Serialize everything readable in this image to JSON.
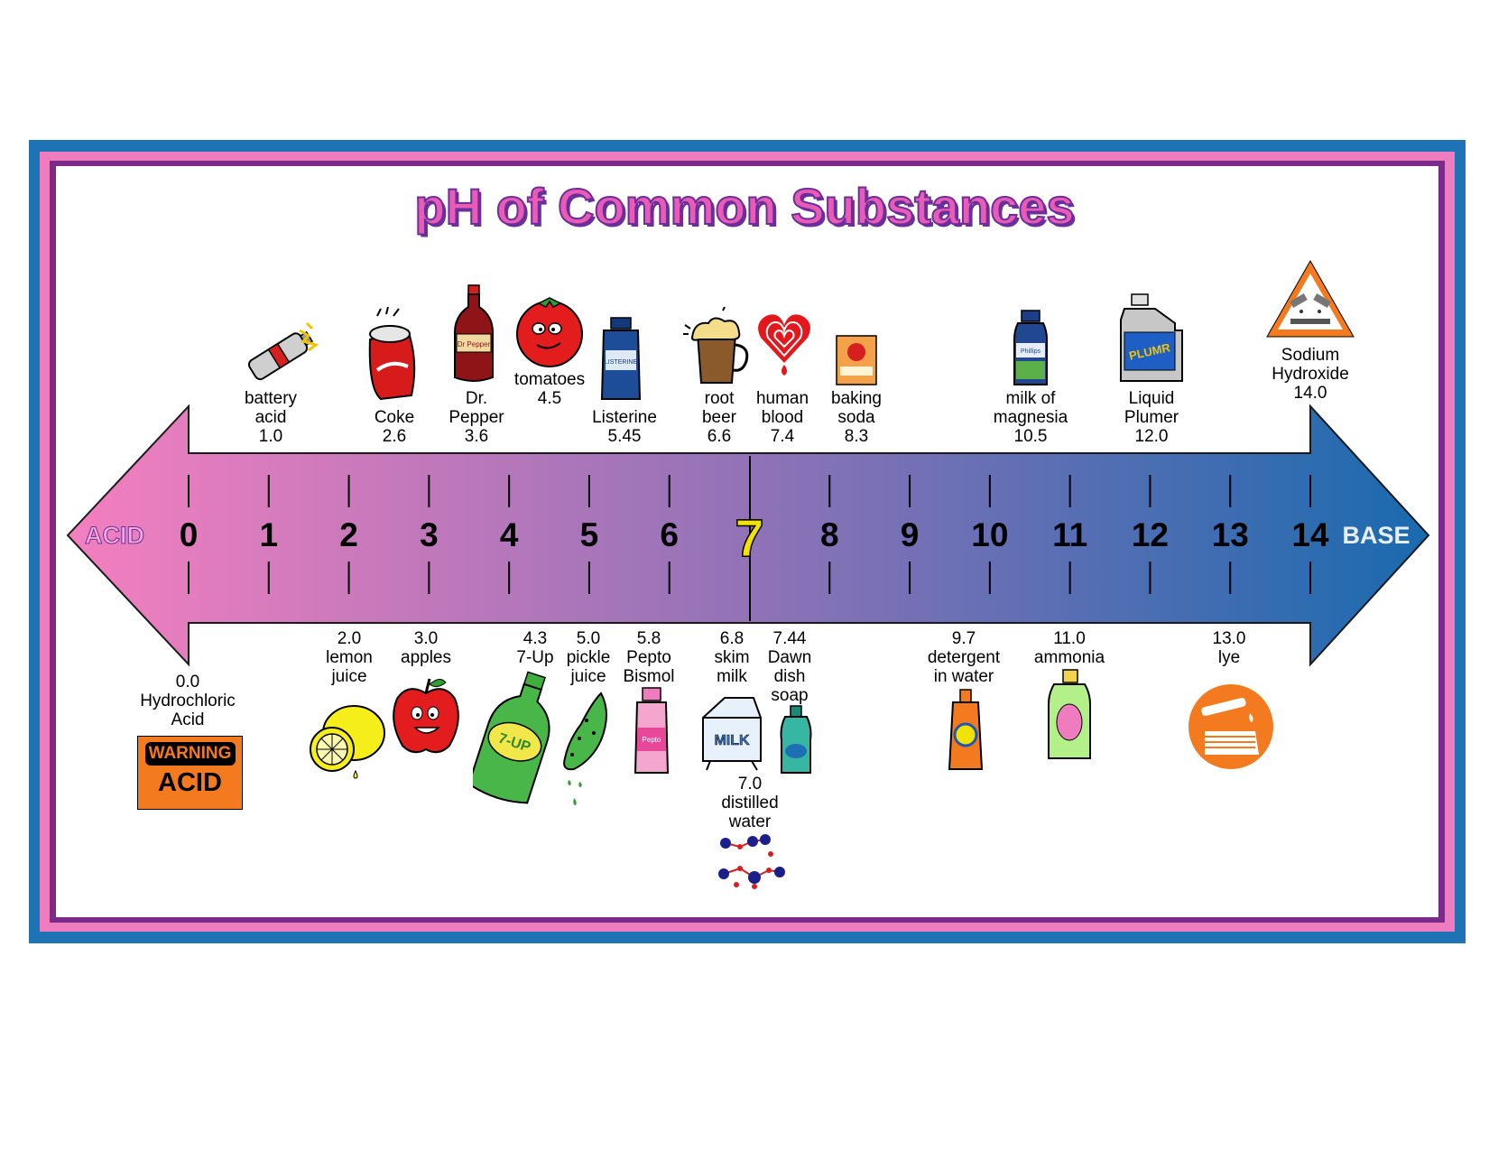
{
  "title": "pH of Common Substances",
  "scale": {
    "acid_label": "ACID",
    "base_label": "BASE",
    "numbers": [
      "0",
      "1",
      "2",
      "3",
      "4",
      "5",
      "6",
      "7",
      "8",
      "9",
      "10",
      "11",
      "12",
      "13",
      "14"
    ],
    "colors": {
      "acid": "#f47fbf",
      "neutral": "#9673b8",
      "base": "#1a6aaf",
      "neutral_number": "#f2e200"
    }
  },
  "top_items": [
    {
      "id": "battery",
      "name_lines": [
        "battery",
        "acid"
      ],
      "value": "1.0",
      "ph": 1.0,
      "icon": "battery-icon"
    },
    {
      "id": "coke",
      "name_lines": [
        "Coke"
      ],
      "value": "2.6",
      "ph": 2.6,
      "icon": "soda-can-icon"
    },
    {
      "id": "drpepper",
      "name_lines": [
        "Dr.",
        "Pepper"
      ],
      "value": "3.6",
      "ph": 3.6,
      "icon": "soda-bottle-icon"
    },
    {
      "id": "tomatoes",
      "name_lines": [
        "tomatoes"
      ],
      "value": "4.5",
      "ph": 4.5,
      "icon": "tomato-icon"
    },
    {
      "id": "listerine",
      "name_lines": [
        "Listerine"
      ],
      "value": "5.45",
      "ph": 5.45,
      "icon": "mouthwash-bottle-icon"
    },
    {
      "id": "rootbeer",
      "name_lines": [
        "root",
        "beer"
      ],
      "value": "6.6",
      "ph": 6.6,
      "icon": "mug-icon"
    },
    {
      "id": "blood",
      "name_lines": [
        "human",
        "blood"
      ],
      "value": "7.4",
      "ph": 7.4,
      "icon": "heart-icon"
    },
    {
      "id": "bakingsoda",
      "name_lines": [
        "baking",
        "soda"
      ],
      "value": "8.3",
      "ph": 8.3,
      "icon": "box-icon"
    },
    {
      "id": "magnesia",
      "name_lines": [
        "milk of",
        "magnesia"
      ],
      "value": "10.5",
      "ph": 10.5,
      "icon": "medicine-bottle-icon"
    },
    {
      "id": "plumer",
      "name_lines": [
        "Liquid",
        "Plumer"
      ],
      "value": "12.0",
      "ph": 12.0,
      "icon": "jug-icon"
    },
    {
      "id": "naoh",
      "name_lines": [
        "Sodium",
        "Hydroxide"
      ],
      "value": "14.0",
      "ph": 14.0,
      "icon": "corrosive-warning-icon"
    }
  ],
  "bottom_items": [
    {
      "id": "hcl",
      "value": "0.0",
      "name_lines": [
        "Hydrochloric",
        "Acid"
      ],
      "ph": 0.0,
      "icon": "warning-sign-icon",
      "sign_text": [
        "WARNING",
        "ACID"
      ]
    },
    {
      "id": "lemon",
      "value": "2.0",
      "name_lines": [
        "lemon",
        "juice"
      ],
      "ph": 2.0,
      "icon": "lemon-icon"
    },
    {
      "id": "apples",
      "value": "3.0",
      "name_lines": [
        "apples"
      ],
      "ph": 3.0,
      "icon": "apple-icon"
    },
    {
      "id": "sevenup",
      "value": "4.3",
      "name_lines": [
        "7-Up"
      ],
      "ph": 4.3,
      "icon": "bottle-icon"
    },
    {
      "id": "pickle",
      "value": "5.0",
      "name_lines": [
        "pickle",
        "juice"
      ],
      "ph": 5.0,
      "icon": "pickle-icon"
    },
    {
      "id": "pepto",
      "value": "5.8",
      "name_lines": [
        "Pepto",
        "Bismol"
      ],
      "ph": 5.8,
      "icon": "medicine-bottle-icon"
    },
    {
      "id": "skim",
      "value": "6.8",
      "name_lines": [
        "skim",
        "milk"
      ],
      "ph": 6.8,
      "icon": "milk-carton-icon"
    },
    {
      "id": "water",
      "value": "7.0",
      "name_lines": [
        "distilled",
        "water"
      ],
      "ph": 7.0,
      "icon": "molecule-icon"
    },
    {
      "id": "dawn",
      "value": "7.44",
      "name_lines": [
        "Dawn",
        "dish",
        "soap"
      ],
      "ph": 7.44,
      "icon": "soap-bottle-icon"
    },
    {
      "id": "detergent",
      "value": "9.7",
      "name_lines": [
        "detergent",
        "in water"
      ],
      "ph": 9.7,
      "icon": "detergent-bottle-icon"
    },
    {
      "id": "ammonia",
      "value": "11.0",
      "name_lines": [
        "ammonia"
      ],
      "ph": 11.0,
      "icon": "ammonia-bottle-icon"
    },
    {
      "id": "lye",
      "value": "13.0",
      "name_lines": [
        "lye"
      ],
      "ph": 13.0,
      "icon": "corrosive-hand-icon"
    }
  ]
}
